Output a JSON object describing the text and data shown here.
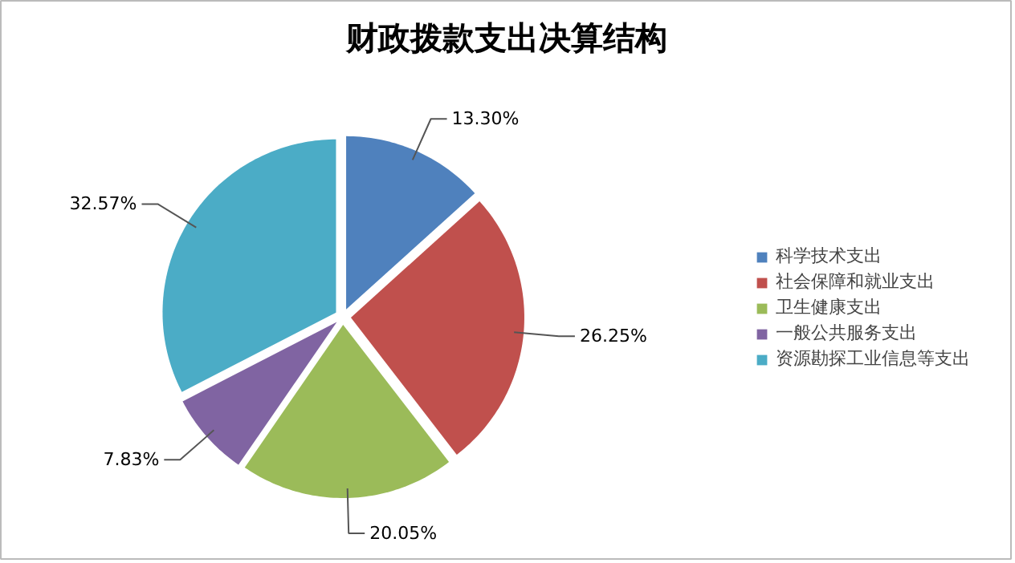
{
  "chart_data": {
    "type": "pie",
    "title": "财政拨款支出决算结构",
    "categories": [
      "科学技术支出",
      "社会保障和就业支出",
      "卫生健康支出",
      "一般公共服务支出",
      "资源勘探工业信息等支出"
    ],
    "values": [
      13.3,
      26.25,
      20.05,
      7.83,
      32.57
    ],
    "colors": [
      "#4f81bd",
      "#c0504d",
      "#9bbb59",
      "#8064a2",
      "#4bacc6"
    ],
    "value_labels": [
      "13.30%",
      "26.25%",
      "20.05%",
      "7.83%",
      "32.57%"
    ],
    "legend": "right"
  }
}
